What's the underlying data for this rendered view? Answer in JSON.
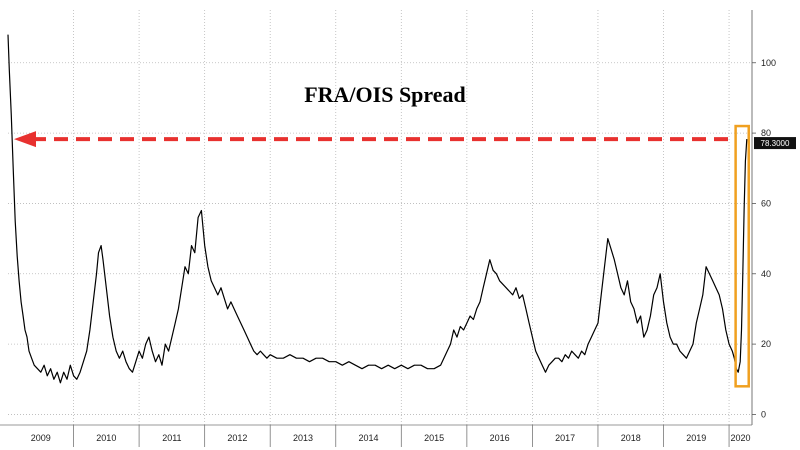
{
  "chart_data": {
    "type": "line",
    "title": "FRA/OIS Spread",
    "xlabel": "",
    "ylabel": "",
    "x_range": [
      2009.0,
      2020.35
    ],
    "ylim": [
      -3,
      115
    ],
    "y_ticks": [
      0,
      20,
      40,
      60,
      80,
      100
    ],
    "x_ticks": [
      2009,
      2010,
      2011,
      2012,
      2013,
      2014,
      2015,
      2016,
      2017,
      2018,
      2019,
      2020
    ],
    "grid": "vertical and horizontal dotted",
    "y_axis_side": "right",
    "last_value_label": "78.3000",
    "reference_line": {
      "type": "horizontal dashed arrow",
      "value": 78.3,
      "color": "#e8312f"
    },
    "highlight_box": {
      "x_range": [
        2020.1,
        2020.3
      ],
      "y_range": [
        8,
        82
      ],
      "color": "#f0a020"
    },
    "series": [
      {
        "color": "#000000",
        "points": [
          [
            2009.0,
            108
          ],
          [
            2009.02,
            98
          ],
          [
            2009.05,
            85
          ],
          [
            2009.08,
            70
          ],
          [
            2009.11,
            55
          ],
          [
            2009.14,
            45
          ],
          [
            2009.17,
            38
          ],
          [
            2009.2,
            32
          ],
          [
            2009.23,
            28
          ],
          [
            2009.26,
            24
          ],
          [
            2009.29,
            22
          ],
          [
            2009.32,
            18
          ],
          [
            2009.36,
            16
          ],
          [
            2009.4,
            14
          ],
          [
            2009.45,
            13
          ],
          [
            2009.5,
            12
          ],
          [
            2009.55,
            14
          ],
          [
            2009.6,
            11
          ],
          [
            2009.65,
            13
          ],
          [
            2009.7,
            10
          ],
          [
            2009.75,
            12
          ],
          [
            2009.8,
            9
          ],
          [
            2009.85,
            12
          ],
          [
            2009.9,
            10
          ],
          [
            2009.95,
            14
          ],
          [
            2010.0,
            11
          ],
          [
            2010.05,
            10
          ],
          [
            2010.1,
            12
          ],
          [
            2010.15,
            15
          ],
          [
            2010.2,
            18
          ],
          [
            2010.25,
            24
          ],
          [
            2010.3,
            32
          ],
          [
            2010.35,
            40
          ],
          [
            2010.38,
            46
          ],
          [
            2010.42,
            48
          ],
          [
            2010.45,
            44
          ],
          [
            2010.5,
            36
          ],
          [
            2010.55,
            28
          ],
          [
            2010.6,
            22
          ],
          [
            2010.65,
            18
          ],
          [
            2010.7,
            16
          ],
          [
            2010.75,
            18
          ],
          [
            2010.8,
            15
          ],
          [
            2010.85,
            13
          ],
          [
            2010.9,
            12
          ],
          [
            2010.95,
            15
          ],
          [
            2011.0,
            18
          ],
          [
            2011.05,
            16
          ],
          [
            2011.1,
            20
          ],
          [
            2011.15,
            22
          ],
          [
            2011.2,
            18
          ],
          [
            2011.25,
            15
          ],
          [
            2011.3,
            17
          ],
          [
            2011.35,
            14
          ],
          [
            2011.4,
            20
          ],
          [
            2011.45,
            18
          ],
          [
            2011.5,
            22
          ],
          [
            2011.55,
            26
          ],
          [
            2011.6,
            30
          ],
          [
            2011.65,
            36
          ],
          [
            2011.7,
            42
          ],
          [
            2011.75,
            40
          ],
          [
            2011.8,
            48
          ],
          [
            2011.85,
            46
          ],
          [
            2011.9,
            56
          ],
          [
            2011.95,
            58
          ],
          [
            2012.0,
            48
          ],
          [
            2012.05,
            42
          ],
          [
            2012.1,
            38
          ],
          [
            2012.15,
            36
          ],
          [
            2012.2,
            34
          ],
          [
            2012.25,
            36
          ],
          [
            2012.3,
            33
          ],
          [
            2012.35,
            30
          ],
          [
            2012.4,
            32
          ],
          [
            2012.45,
            30
          ],
          [
            2012.5,
            28
          ],
          [
            2012.55,
            26
          ],
          [
            2012.6,
            24
          ],
          [
            2012.65,
            22
          ],
          [
            2012.7,
            20
          ],
          [
            2012.75,
            18
          ],
          [
            2012.8,
            17
          ],
          [
            2012.85,
            18
          ],
          [
            2012.9,
            17
          ],
          [
            2012.95,
            16
          ],
          [
            2013.0,
            17
          ],
          [
            2013.1,
            16
          ],
          [
            2013.2,
            16
          ],
          [
            2013.3,
            17
          ],
          [
            2013.4,
            16
          ],
          [
            2013.5,
            16
          ],
          [
            2013.6,
            15
          ],
          [
            2013.7,
            16
          ],
          [
            2013.8,
            16
          ],
          [
            2013.9,
            15
          ],
          [
            2014.0,
            15
          ],
          [
            2014.1,
            14
          ],
          [
            2014.2,
            15
          ],
          [
            2014.3,
            14
          ],
          [
            2014.4,
            13
          ],
          [
            2014.5,
            14
          ],
          [
            2014.6,
            14
          ],
          [
            2014.7,
            13
          ],
          [
            2014.8,
            14
          ],
          [
            2014.9,
            13
          ],
          [
            2015.0,
            14
          ],
          [
            2015.1,
            13
          ],
          [
            2015.2,
            14
          ],
          [
            2015.3,
            14
          ],
          [
            2015.4,
            13
          ],
          [
            2015.5,
            13
          ],
          [
            2015.6,
            14
          ],
          [
            2015.7,
            18
          ],
          [
            2015.75,
            20
          ],
          [
            2015.8,
            24
          ],
          [
            2015.85,
            22
          ],
          [
            2015.9,
            25
          ],
          [
            2015.95,
            24
          ],
          [
            2016.0,
            26
          ],
          [
            2016.05,
            28
          ],
          [
            2016.1,
            27
          ],
          [
            2016.15,
            30
          ],
          [
            2016.2,
            32
          ],
          [
            2016.25,
            36
          ],
          [
            2016.3,
            40
          ],
          [
            2016.35,
            44
          ],
          [
            2016.4,
            41
          ],
          [
            2016.45,
            40
          ],
          [
            2016.5,
            38
          ],
          [
            2016.55,
            37
          ],
          [
            2016.6,
            36
          ],
          [
            2016.65,
            35
          ],
          [
            2016.7,
            34
          ],
          [
            2016.75,
            36
          ],
          [
            2016.8,
            33
          ],
          [
            2016.85,
            34
          ],
          [
            2016.9,
            30
          ],
          [
            2016.95,
            26
          ],
          [
            2017.0,
            22
          ],
          [
            2017.05,
            18
          ],
          [
            2017.1,
            16
          ],
          [
            2017.15,
            14
          ],
          [
            2017.2,
            12
          ],
          [
            2017.25,
            14
          ],
          [
            2017.3,
            15
          ],
          [
            2017.35,
            16
          ],
          [
            2017.4,
            16
          ],
          [
            2017.45,
            15
          ],
          [
            2017.5,
            17
          ],
          [
            2017.55,
            16
          ],
          [
            2017.6,
            18
          ],
          [
            2017.65,
            17
          ],
          [
            2017.7,
            16
          ],
          [
            2017.75,
            18
          ],
          [
            2017.8,
            17
          ],
          [
            2017.85,
            20
          ],
          [
            2017.9,
            22
          ],
          [
            2017.95,
            24
          ],
          [
            2018.0,
            26
          ],
          [
            2018.05,
            34
          ],
          [
            2018.1,
            42
          ],
          [
            2018.15,
            50
          ],
          [
            2018.2,
            47
          ],
          [
            2018.25,
            44
          ],
          [
            2018.3,
            40
          ],
          [
            2018.35,
            36
          ],
          [
            2018.4,
            34
          ],
          [
            2018.45,
            38
          ],
          [
            2018.5,
            32
          ],
          [
            2018.55,
            30
          ],
          [
            2018.6,
            26
          ],
          [
            2018.65,
            28
          ],
          [
            2018.7,
            22
          ],
          [
            2018.75,
            24
          ],
          [
            2018.8,
            28
          ],
          [
            2018.85,
            34
          ],
          [
            2018.9,
            36
          ],
          [
            2018.95,
            40
          ],
          [
            2019.0,
            32
          ],
          [
            2019.05,
            26
          ],
          [
            2019.1,
            22
          ],
          [
            2019.15,
            20
          ],
          [
            2019.2,
            20
          ],
          [
            2019.25,
            18
          ],
          [
            2019.3,
            17
          ],
          [
            2019.35,
            16
          ],
          [
            2019.4,
            18
          ],
          [
            2019.45,
            20
          ],
          [
            2019.5,
            26
          ],
          [
            2019.55,
            30
          ],
          [
            2019.6,
            34
          ],
          [
            2019.65,
            42
          ],
          [
            2019.7,
            40
          ],
          [
            2019.75,
            38
          ],
          [
            2019.8,
            36
          ],
          [
            2019.85,
            34
          ],
          [
            2019.9,
            30
          ],
          [
            2019.95,
            24
          ],
          [
            2020.0,
            20
          ],
          [
            2020.05,
            18
          ],
          [
            2020.08,
            16
          ],
          [
            2020.11,
            13
          ],
          [
            2020.14,
            12
          ],
          [
            2020.17,
            15
          ],
          [
            2020.19,
            24
          ],
          [
            2020.21,
            40
          ],
          [
            2020.23,
            58
          ],
          [
            2020.25,
            72
          ],
          [
            2020.27,
            78.3
          ]
        ]
      }
    ]
  }
}
